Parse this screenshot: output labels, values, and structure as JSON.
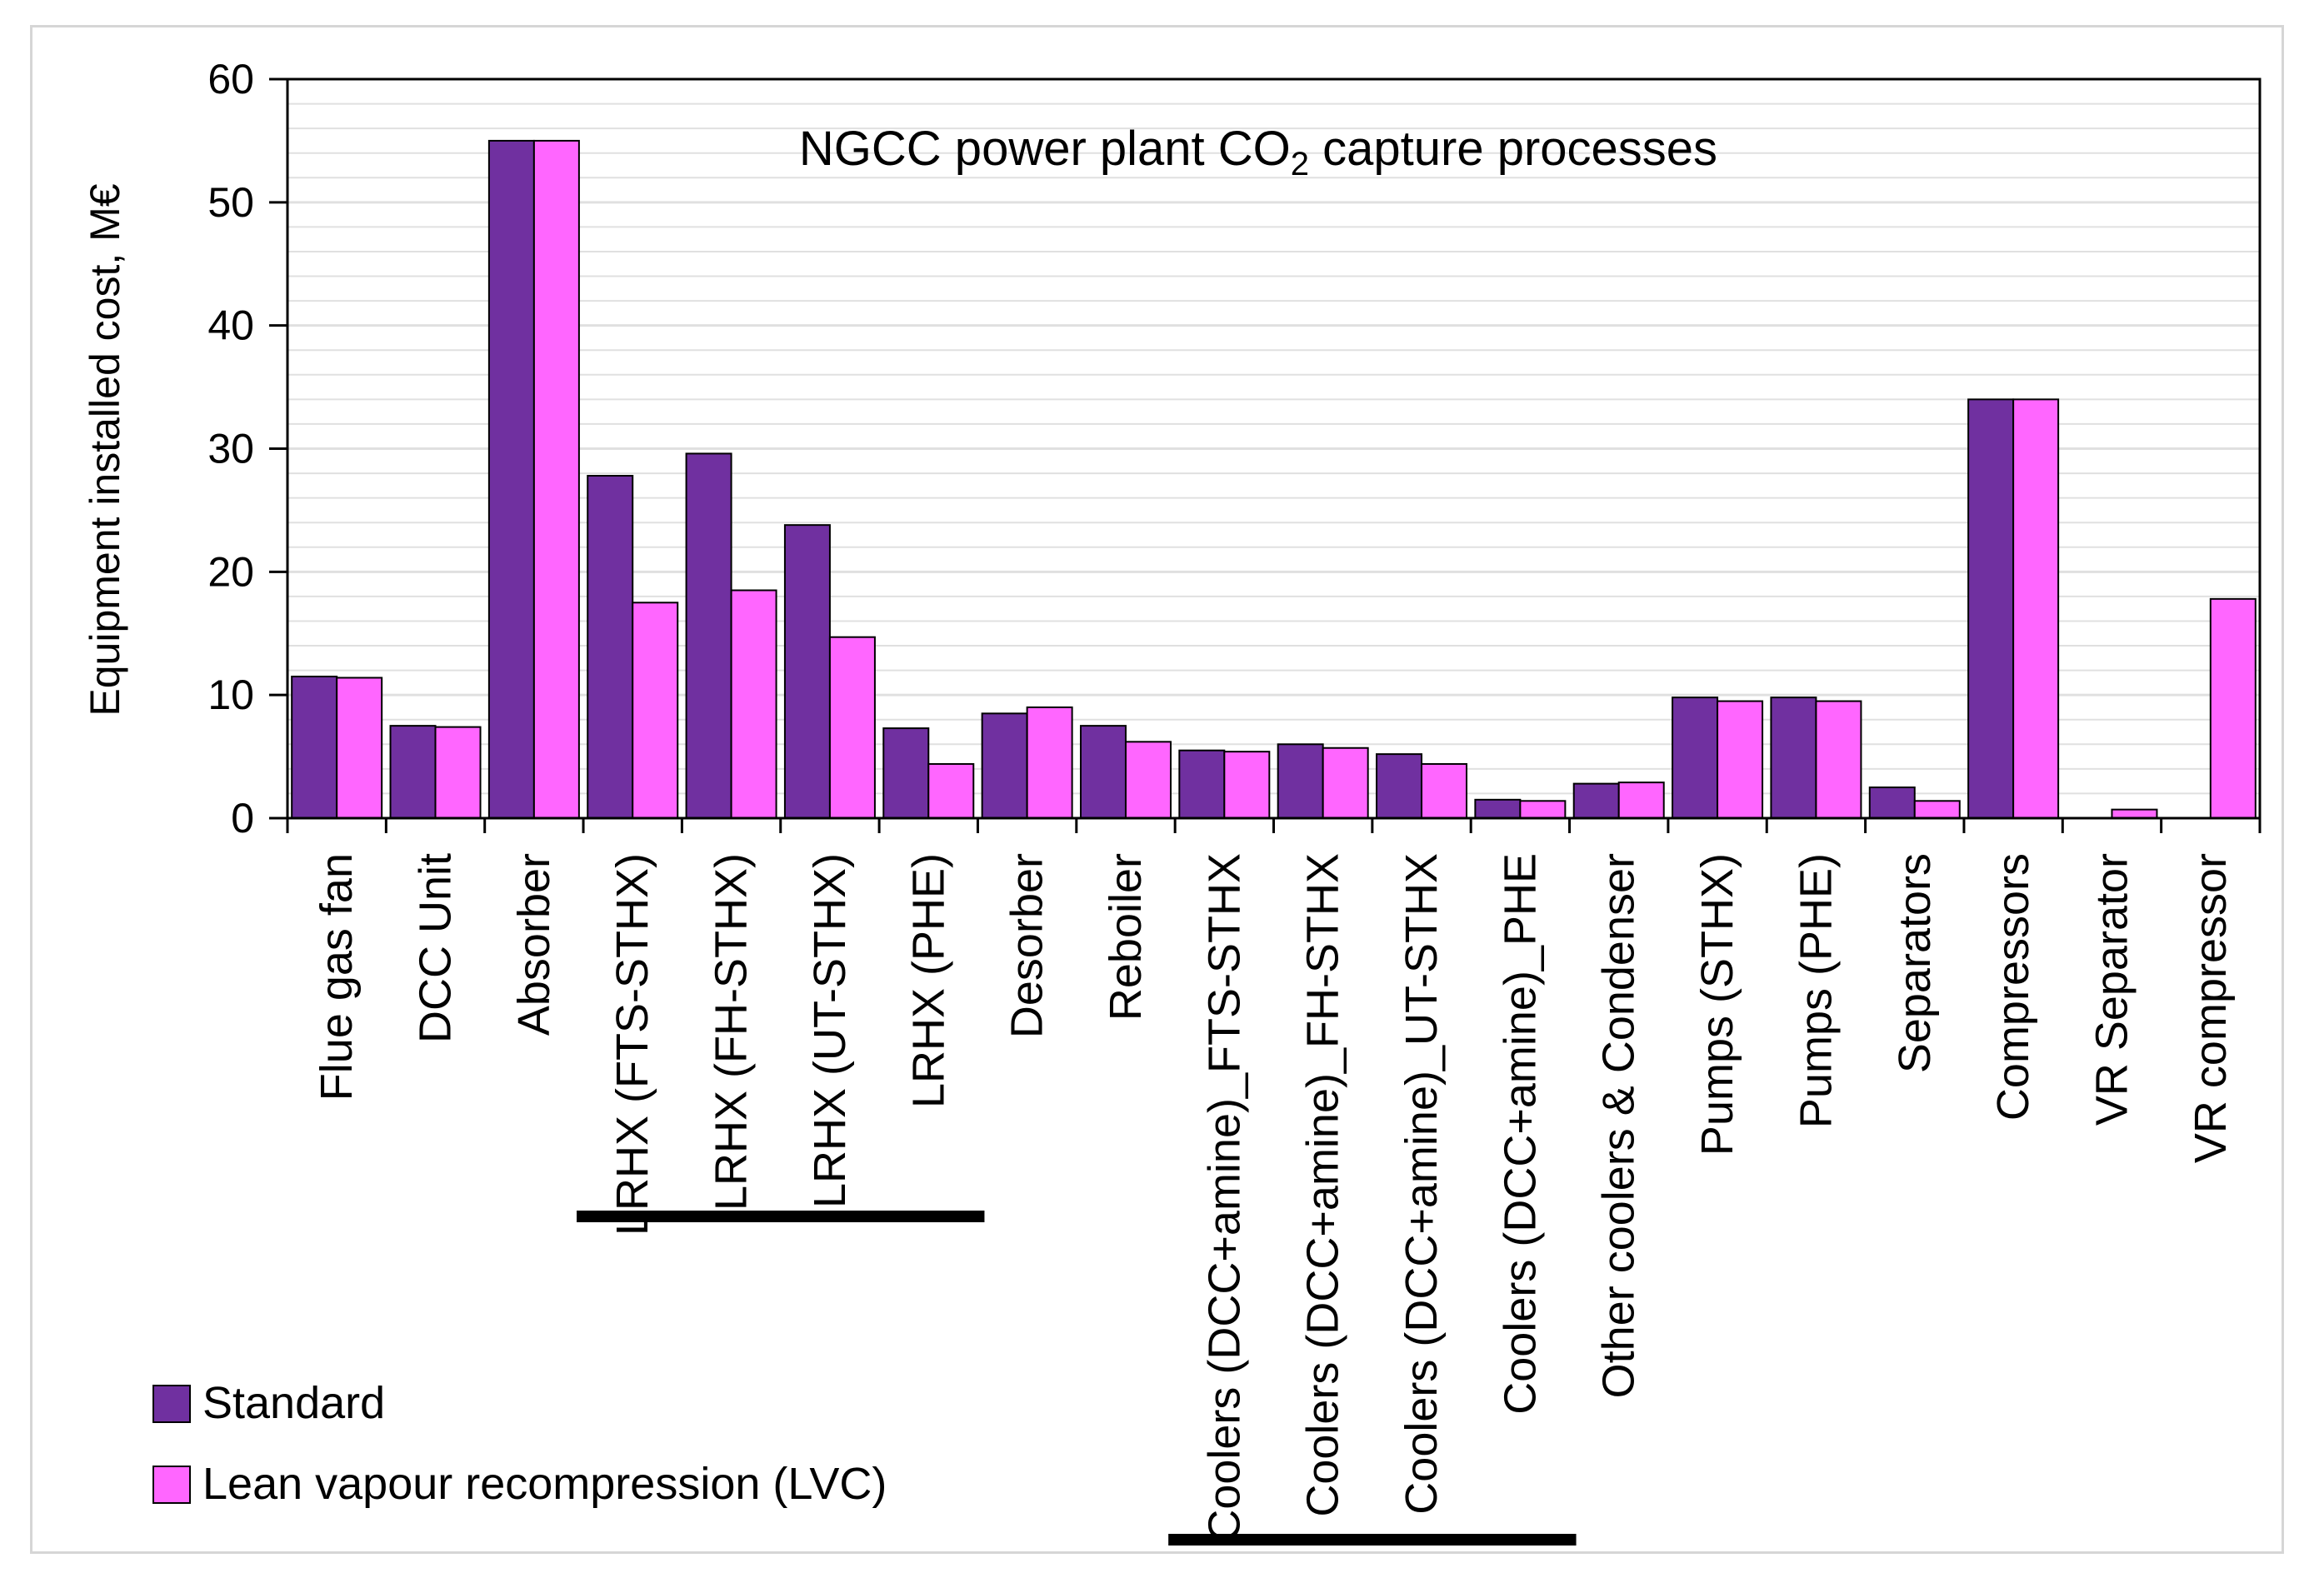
{
  "chart_data": {
    "type": "bar",
    "title_main": "NGCC power plant CO",
    "title_sub": "2",
    "title_rest": " capture processes",
    "ylabel": "Equipment installed cost, M€",
    "xlabel": "",
    "ylim": [
      0,
      60
    ],
    "yticks": [
      0,
      10,
      20,
      30,
      40,
      50,
      60
    ],
    "grid": true,
    "legend_position": "bottom-left",
    "colors": {
      "standard": "#7030a0",
      "lvc": "#ff66ff",
      "grid": "#e0e0e0",
      "axis": "#000000"
    },
    "categories": [
      "Flue gas fan",
      "DCC Unit",
      "Absorber",
      "LRHX (FTS-STHX)",
      "LRHX (FH-STHX)",
      "LRHX (UT-STHX)",
      "LRHX (PHE)",
      "Desorber",
      "Reboiler",
      "Coolers (DCC+amine)_FTS-STHX",
      "Coolers (DCC+amine)_FH-STHX",
      "Coolers (DCC+amine)_UT-STHX",
      "Coolers (DCC+amine)_PHE",
      "Other coolers & Condenser",
      "Pumps (STHX)",
      "Pumps (PHE)",
      "Separators",
      "Compressors",
      "VR Separator",
      "VR compressor"
    ],
    "series": [
      {
        "name": "Standard",
        "values": [
          11.5,
          7.5,
          55.0,
          27.8,
          29.6,
          23.8,
          7.3,
          8.5,
          7.5,
          5.5,
          6.0,
          5.2,
          1.5,
          2.8,
          9.8,
          9.8,
          2.5,
          34.0,
          0,
          0
        ]
      },
      {
        "name": "Lean vapour recompression (LVC)",
        "values": [
          11.4,
          7.4,
          55.0,
          17.5,
          18.5,
          14.7,
          4.4,
          9.0,
          6.2,
          5.4,
          5.7,
          4.4,
          1.4,
          2.9,
          9.5,
          9.5,
          1.4,
          34.0,
          0.7,
          17.8
        ]
      }
    ],
    "group_underlines": [
      {
        "from_category": 3,
        "to_category": 6
      },
      {
        "from_category": 9,
        "to_category": 12
      }
    ]
  }
}
